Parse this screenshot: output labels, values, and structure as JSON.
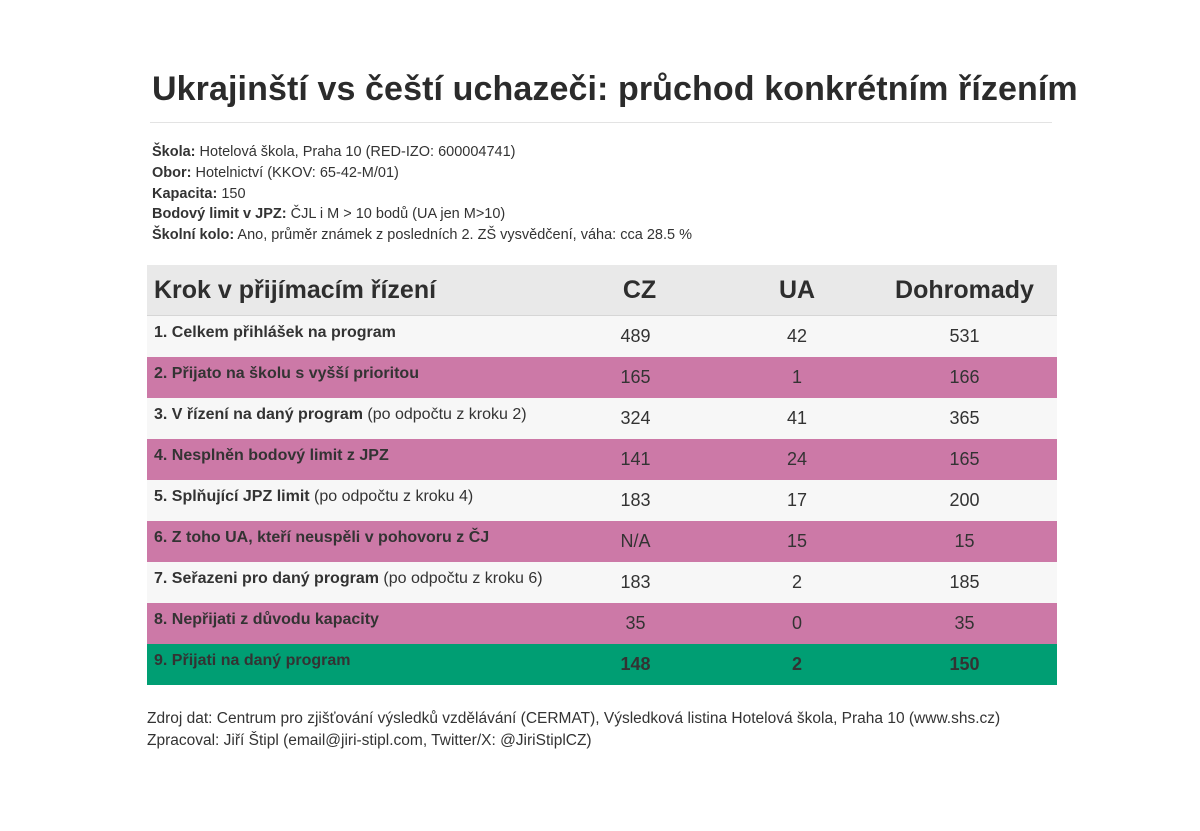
{
  "title": "Ukrajinští vs čeští uchazeči: průchod konkrétním řízením",
  "meta": {
    "school": {
      "label": "Škola:",
      "value": "Hotelová škola, Praha 10 (RED-IZO: 600004741)"
    },
    "field": {
      "label": "Obor:",
      "value": "Hotelnictví (KKOV: 65-42-M/01)"
    },
    "capacity": {
      "label": "Kapacita:",
      "value": "150"
    },
    "limit": {
      "label": "Bodový limit v JPZ:",
      "value": "ČJL i M > 10 bodů (UA jen M>10)"
    },
    "round": {
      "label": "Školní kolo:",
      "value": "Ano, průměr známek z posledních 2. ZŠ vysvědčení, váha: cca 28.5 %"
    }
  },
  "table": {
    "headers": {
      "step": "Krok v přijímacím řízení",
      "cz": "CZ",
      "ua": "UA",
      "total": "Dohromady"
    },
    "rows": [
      {
        "label": "1. Celkem přihlášek na program",
        "note": "",
        "cz": "489",
        "ua": "42",
        "total": "531"
      },
      {
        "label": "2. Přijato na školu s vyšší prioritou",
        "note": "",
        "cz": "165",
        "ua": "1",
        "total": "166"
      },
      {
        "label": "3. V řízení na daný program",
        "note": " (po odpočtu z kroku 2)",
        "cz": "324",
        "ua": "41",
        "total": "365"
      },
      {
        "label": "4. Nesplněn bodový limit z JPZ",
        "note": "",
        "cz": "141",
        "ua": "24",
        "total": "165"
      },
      {
        "label": "5. Splňující JPZ limit",
        "note": " (po odpočtu z kroku 4)",
        "cz": "183",
        "ua": "17",
        "total": "200"
      },
      {
        "label": "6. Z toho UA, kteří neuspěli v pohovoru z ČJ",
        "note": "",
        "cz": "N/A",
        "ua": "15",
        "total": "15"
      },
      {
        "label": "7. Seřazeni pro daný program",
        "note": " (po odpočtu z kroku 6)",
        "cz": "183",
        "ua": "2",
        "total": "185"
      },
      {
        "label": "8. Nepřijati z důvodu kapacity",
        "note": "",
        "cz": "35",
        "ua": "0",
        "total": "35"
      },
      {
        "label": "9. Přijati na daný program",
        "note": "",
        "cz": "148",
        "ua": "2",
        "total": "150"
      }
    ],
    "colors": {
      "plain": "#f7f7f7",
      "highlight": "#cc79a7",
      "result": "#009e73",
      "header": "#e9e9e9"
    }
  },
  "footer": {
    "source": "Zdroj dat: Centrum pro zjišťování výsledků vzdělávání (CERMAT), Výsledková listina Hotelová škola, Praha 10 (www.shs.cz)",
    "author": "Zpracoval: Jiří Štipl (email@jiri-stipl.com, Twitter/X: @JiriStiplCZ)"
  }
}
